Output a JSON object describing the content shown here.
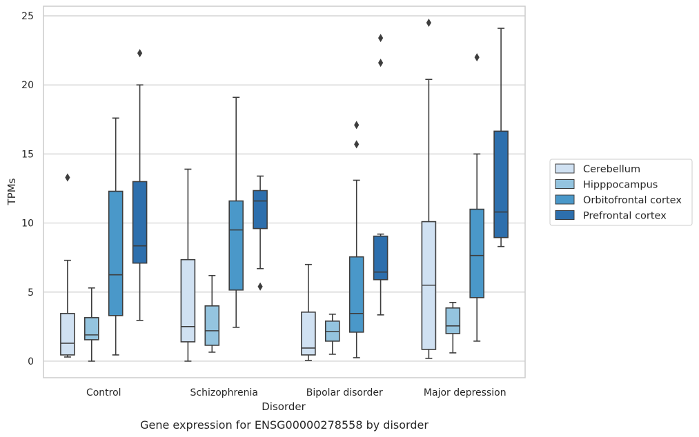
{
  "caption": "Gene expression for ENSG00000278558 by disorder",
  "chart_data": {
    "type": "box",
    "xlabel": "Disorder",
    "ylabel": "TPMs",
    "ylim": [
      -1.2,
      25.7
    ],
    "yticks": [
      0,
      5,
      10,
      15,
      20,
      25
    ],
    "grid": "horizontal",
    "legend_position": "right",
    "categories": [
      "Control",
      "Schizophrenia",
      "Bipolar disorder",
      "Major depression"
    ],
    "series": [
      {
        "name": "Cerebellum",
        "color": "#d0e1f2",
        "boxes": [
          {
            "min": 0.3,
            "q1": 0.45,
            "median": 1.3,
            "q3": 3.45,
            "max": 7.3,
            "outliers": [
              13.3
            ]
          },
          {
            "min": 0.0,
            "q1": 1.4,
            "median": 2.5,
            "q3": 7.35,
            "max": 13.9,
            "outliers": []
          },
          {
            "min": 0.05,
            "q1": 0.45,
            "median": 0.95,
            "q3": 3.55,
            "max": 7.0,
            "outliers": []
          },
          {
            "min": 0.2,
            "q1": 0.85,
            "median": 5.5,
            "q3": 10.1,
            "max": 20.4,
            "outliers": [
              24.5
            ]
          }
        ]
      },
      {
        "name": "Hipppocampus",
        "color": "#94c4df",
        "boxes": [
          {
            "min": 0.0,
            "q1": 1.55,
            "median": 1.9,
            "q3": 3.15,
            "max": 5.3,
            "outliers": []
          },
          {
            "min": 0.65,
            "q1": 1.15,
            "median": 2.2,
            "q3": 4.0,
            "max": 6.2,
            "outliers": []
          },
          {
            "min": 0.5,
            "q1": 1.45,
            "median": 2.15,
            "q3": 2.9,
            "max": 3.4,
            "outliers": []
          },
          {
            "min": 0.6,
            "q1": 2.0,
            "median": 2.55,
            "q3": 3.85,
            "max": 4.25,
            "outliers": []
          }
        ]
      },
      {
        "name": "Orbitofrontal cortex",
        "color": "#4a98c9",
        "boxes": [
          {
            "min": 0.45,
            "q1": 3.3,
            "median": 6.25,
            "q3": 12.3,
            "max": 17.6,
            "outliers": []
          },
          {
            "min": 2.45,
            "q1": 5.15,
            "median": 9.5,
            "q3": 11.6,
            "max": 19.1,
            "outliers": []
          },
          {
            "min": 0.25,
            "q1": 2.1,
            "median": 3.45,
            "q3": 7.55,
            "max": 13.1,
            "outliers": [
              17.1,
              15.7
            ]
          },
          {
            "min": 1.45,
            "q1": 4.6,
            "median": 7.65,
            "q3": 11.0,
            "max": 15.0,
            "outliers": [
              22.0
            ]
          }
        ]
      },
      {
        "name": "Prefrontal cortex",
        "color": "#2d6fad",
        "boxes": [
          {
            "min": 2.95,
            "q1": 7.1,
            "median": 8.35,
            "q3": 13.0,
            "max": 20.0,
            "outliers": [
              22.3
            ]
          },
          {
            "min": 6.7,
            "q1": 9.6,
            "median": 11.6,
            "q3": 12.35,
            "max": 13.4,
            "outliers": [
              5.4
            ]
          },
          {
            "min": 3.35,
            "q1": 5.9,
            "median": 6.45,
            "q3": 9.05,
            "max": 9.2,
            "outliers": [
              23.4,
              21.6
            ]
          },
          {
            "min": 8.3,
            "q1": 8.95,
            "median": 10.8,
            "q3": 16.65,
            "max": 24.1,
            "outliers": []
          }
        ]
      }
    ]
  }
}
